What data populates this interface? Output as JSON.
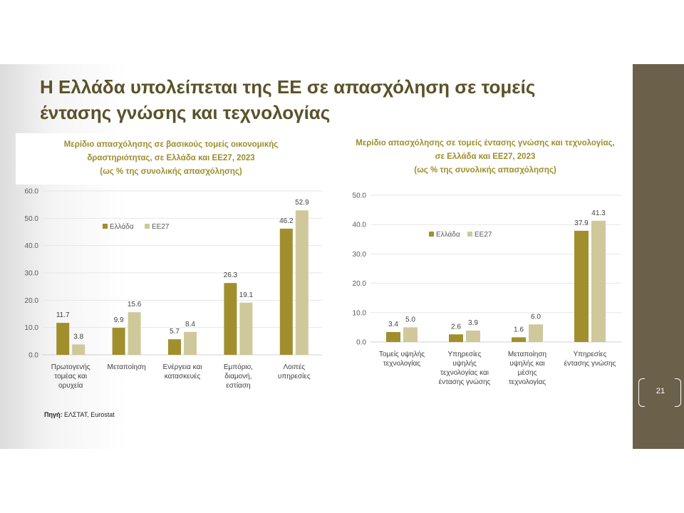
{
  "slide": {
    "title_line1": "Η Ελλάδα υπολείπεται της ΕΕ σε απασχόληση σε τομείς",
    "title_line2": "έντασης γνώσης και τεχνολογίας",
    "slide_number": "21",
    "source_label": "Πηγή:",
    "source_text": "ΕΛΣΤΑΤ, Eurostat",
    "colors": {
      "band": "#6b604a",
      "title": "#5a5229",
      "chart_title": "#9c8e2c"
    }
  },
  "chart_data": [
    {
      "type": "bar",
      "title_lines": [
        "Μερίδιο απασχόλησης σε βασικούς τομείς οικονομικής",
        "δραστηριότητας, σε Ελλάδα και ΕΕ27, 2023",
        "(ως % της συνολικής απασχόλησης)"
      ],
      "categories": [
        [
          "Πρωτογενής",
          "τομέας και",
          "ορυχεία"
        ],
        [
          "Μεταποίηση"
        ],
        [
          "Ενέργεια και",
          "κατασκευές"
        ],
        [
          "Εμπόριο,",
          "διαμονή,",
          "εστίαση"
        ],
        [
          "Λοιπές",
          "υπηρεσίες"
        ]
      ],
      "series": [
        {
          "name": "Ελλάδα",
          "color": "#a18f2e",
          "values": [
            11.7,
            9.9,
            5.7,
            26.3,
            46.2
          ]
        },
        {
          "name": "ΕΕ27",
          "color": "#cfc89a",
          "values": [
            3.8,
            15.6,
            8.4,
            19.1,
            52.9
          ]
        }
      ],
      "ylim": [
        0,
        60
      ],
      "yticks": [
        "0.0",
        "10.0",
        "20.0",
        "30.0",
        "40.0",
        "50.0",
        "60.0"
      ],
      "grid": true,
      "legend": "top-left"
    },
    {
      "type": "bar",
      "title_lines": [
        "Μερίδιο απασχόλησης σε τομείς έντασης γνώσης και τεχνολογίας,",
        "σε Ελλάδα και ΕΕ27, 2023",
        "(ως % της συνολικής απασχόλησης)"
      ],
      "categories": [
        [
          "Τομείς υψηλής",
          "τεχνολογίας"
        ],
        [
          "Υπηρεσίες",
          "υψηλής",
          "τεχνολογίας και",
          "έντασης γνώσης"
        ],
        [
          "Μεταποίηση",
          "υψηλής και",
          "μέσης",
          "τεχνολογίας"
        ],
        [
          "Υπηρεσίες",
          "έντασης γνώσης"
        ]
      ],
      "series": [
        {
          "name": "Ελλάδα",
          "color": "#a18f2e",
          "values": [
            3.4,
            2.6,
            1.6,
            37.9
          ]
        },
        {
          "name": "ΕΕ27",
          "color": "#cfc89a",
          "values": [
            5.0,
            3.9,
            6.0,
            41.3
          ]
        }
      ],
      "ylim": [
        0,
        50
      ],
      "yticks": [
        "0.0",
        "10.0",
        "20.0",
        "30.0",
        "40.0",
        "50.0"
      ],
      "grid": true,
      "legend": "top-center"
    }
  ]
}
